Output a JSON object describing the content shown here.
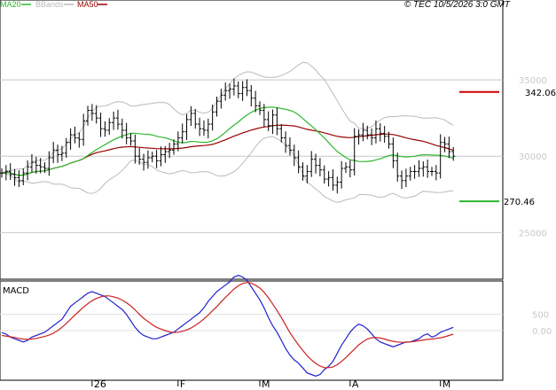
{
  "legend": [
    {
      "label": "MA20",
      "color": "#2db82d"
    },
    {
      "label": "BBands",
      "color": "#bbbbbb"
    },
    {
      "label": "MA50",
      "color": "#990000"
    }
  ],
  "credit": "© TEC 10/5/2026 3:0 GMT",
  "price_panel": {
    "y_ticks": [
      "35000",
      "30000",
      "25000"
    ],
    "y_values": [
      35000,
      30000,
      25000
    ],
    "ylim": [
      22000,
      40000
    ]
  },
  "annotations": {
    "high": {
      "label": "342.06",
      "value": 34206,
      "color": "#cc0000"
    },
    "low": {
      "label": "270.46",
      "value": 27046,
      "color": "#2db82d"
    }
  },
  "macd_panel": {
    "title": "MACD",
    "y_ticks": [
      "500",
      "0.00"
    ],
    "y_values": [
      500,
      0
    ],
    "ylim": [
      -1500,
      1500
    ]
  },
  "x_axis": {
    "labels": [
      "26",
      "F",
      "M",
      "A",
      "M"
    ],
    "label_index": [
      21,
      41,
      60,
      81,
      102
    ]
  },
  "chart_data": {
    "type": "ohlc",
    "series": [
      {
        "name": "MA20",
        "color": "#2db82d"
      },
      {
        "name": "BBands",
        "color": "#bbbbbb"
      },
      {
        "name": "MA50",
        "color": "#990000"
      }
    ],
    "closes": [
      28900,
      29000,
      28800,
      28600,
      28400,
      28900,
      29300,
      29600,
      29400,
      29300,
      29200,
      29900,
      30400,
      30100,
      30200,
      30900,
      31400,
      31200,
      31100,
      32300,
      33000,
      32800,
      32500,
      31800,
      31700,
      32200,
      32500,
      32100,
      31700,
      31200,
      31000,
      30000,
      29800,
      29600,
      29900,
      30000,
      29700,
      30100,
      30300,
      30400,
      30800,
      31200,
      31600,
      32400,
      32800,
      32100,
      31800,
      31700,
      32100,
      32900,
      33600,
      34000,
      34300,
      34400,
      34600,
      34100,
      34500,
      34300,
      33800,
      33300,
      33000,
      32400,
      32000,
      32700,
      31800,
      31200,
      30700,
      30400,
      29900,
      29300,
      28700,
      29000,
      29800,
      29400,
      29100,
      28500,
      28600,
      28100,
      28300,
      29200,
      29300,
      29100,
      31300,
      31400,
      31700,
      31400,
      31200,
      31800,
      31500,
      31300,
      30800,
      29700,
      28700,
      28400,
      28700,
      29000,
      29000,
      29200,
      29300,
      29000,
      29000,
      28900,
      30900,
      30800,
      30300,
      30000
    ],
    "macd": [
      -60,
      -110,
      -200,
      -250,
      -300,
      -350,
      -300,
      -200,
      -150,
      -100,
      -50,
      50,
      150,
      250,
      350,
      550,
      750,
      850,
      950,
      1050,
      1150,
      1200,
      1150,
      1100,
      1050,
      950,
      850,
      750,
      650,
      500,
      300,
      100,
      -50,
      -150,
      -200,
      -250,
      -250,
      -200,
      -150,
      -100,
      -50,
      50,
      150,
      250,
      350,
      450,
      550,
      700,
      900,
      1050,
      1200,
      1300,
      1400,
      1500,
      1650,
      1700,
      1650,
      1550,
      1350,
      1150,
      950,
      700,
      400,
      150,
      -50,
      -300,
      -550,
      -750,
      -900,
      -1000,
      -1150,
      -1300,
      -1350,
      -1400,
      -1350,
      -1200,
      -1100,
      -950,
      -700,
      -450,
      -250,
      -50,
      100,
      200,
      150,
      50,
      -100,
      -250,
      -350,
      -400,
      -450,
      -500,
      -450,
      -400,
      -350,
      -350,
      -300,
      -250,
      -150,
      -100,
      -200,
      -150,
      -50,
      0,
      50,
      100
    ],
    "macd_signal": [
      -150,
      -170,
      -190,
      -210,
      -240,
      -260,
      -270,
      -260,
      -240,
      -210,
      -180,
      -140,
      -80,
      0,
      100,
      220,
      350,
      480,
      600,
      720,
      830,
      920,
      990,
      1040,
      1070,
      1070,
      1040,
      1000,
      940,
      860,
      760,
      640,
      500,
      380,
      280,
      180,
      100,
      50,
      0,
      -40,
      -60,
      -50,
      -20,
      20,
      80,
      160,
      250,
      360,
      480,
      610,
      740,
      880,
      1020,
      1150,
      1280,
      1380,
      1450,
      1480,
      1460,
      1400,
      1310,
      1180,
      1010,
      820,
      620,
      400,
      170,
      -60,
      -260,
      -440,
      -610,
      -770,
      -900,
      -1010,
      -1090,
      -1140,
      -1140,
      -1120,
      -1050,
      -950,
      -830,
      -700,
      -570,
      -440,
      -340,
      -260,
      -220,
      -210,
      -230,
      -260,
      -300,
      -330,
      -350,
      -360,
      -360,
      -350,
      -330,
      -310,
      -290,
      -270,
      -260,
      -240,
      -220,
      -190,
      -150,
      -110
    ]
  }
}
